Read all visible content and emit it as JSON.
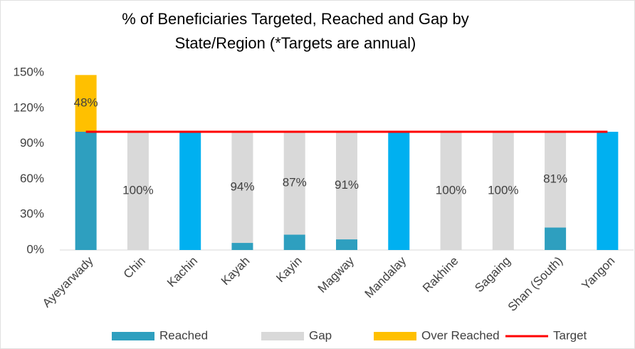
{
  "chart_data": {
    "type": "bar",
    "stacked": true,
    "title": "% of Beneficiaries Targeted, Reached and Gap by",
    "subtitle": "State/Region (*Targets are annual)",
    "categories": [
      "Ayeyarwady",
      "Chin",
      "Kachin",
      "Kayah",
      "Kayin",
      "Magway",
      "Mandalay",
      "Rakhine",
      "Sagaing",
      "Shan (South)",
      "Yangon"
    ],
    "series": [
      {
        "name": "Reached",
        "color": "#2e9fbf",
        "colors": [
          "#2e9fbf",
          "#2e9fbf",
          "#00b0f0",
          "#2e9fbf",
          "#2e9fbf",
          "#2e9fbf",
          "#00b0f0",
          "#2e9fbf",
          "#2e9fbf",
          "#2e9fbf",
          "#00b0f0"
        ],
        "values": [
          100,
          0,
          100,
          6,
          13,
          9,
          100,
          0,
          0,
          19,
          100
        ]
      },
      {
        "name": "Gap",
        "color": "#d9d9d9",
        "values": [
          0,
          100,
          0,
          94,
          87,
          91,
          0,
          100,
          100,
          81,
          0
        ],
        "value_labels": [
          null,
          "100%",
          null,
          "94%",
          "87%",
          "91%",
          null,
          "100%",
          "100%",
          "81%",
          null
        ]
      },
      {
        "name": "Over Reached",
        "color": "#ffc000",
        "values": [
          48,
          0,
          0,
          0,
          0,
          0,
          0,
          0,
          0,
          0,
          0
        ],
        "value_labels": [
          "48%",
          null,
          null,
          null,
          null,
          null,
          null,
          null,
          null,
          null,
          null
        ]
      },
      {
        "name": "Target",
        "type": "line",
        "color": "#ff0000",
        "values": [
          100,
          100,
          100,
          100,
          100,
          100,
          100,
          100,
          100,
          100,
          100
        ]
      }
    ],
    "ylim": [
      0,
      150
    ],
    "yticks": [
      {
        "value": 0,
        "label": "0%"
      },
      {
        "value": 30,
        "label": "30%"
      },
      {
        "value": 60,
        "label": "60%"
      },
      {
        "value": 90,
        "label": "90%"
      },
      {
        "value": 120,
        "label": "120%"
      },
      {
        "value": 150,
        "label": "150%"
      }
    ],
    "grid": false,
    "legend": "bottom"
  }
}
